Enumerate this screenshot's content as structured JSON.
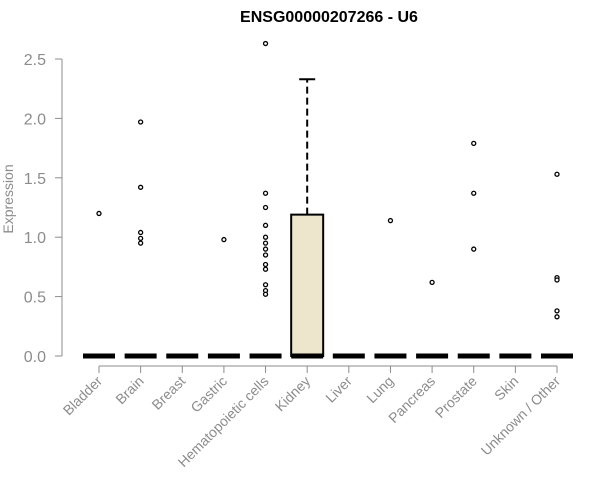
{
  "chart_data": {
    "type": "box",
    "title": "ENSG00000207266 - U6",
    "xlabel": "",
    "ylabel": "Expression",
    "ylim": [
      0,
      2.6
    ],
    "yticks": [
      "0.0",
      "0.5",
      "1.0",
      "1.5",
      "2.0",
      "2.5"
    ],
    "ytick_values": [
      0,
      0.5,
      1.0,
      1.5,
      2.0,
      2.5
    ],
    "grid": false,
    "colors": {
      "box_fill": "#ede6cc",
      "line": "#000000",
      "axis": "#8c8c8c",
      "label": "#8c8c8c"
    },
    "categories": [
      "Bladder",
      "Brain",
      "Breast",
      "Gastric",
      "Hematopoietic cells",
      "Kidney",
      "Liver",
      "Lung",
      "Pancreas",
      "Prostate",
      "Skin",
      "Unknown / Other"
    ],
    "boxes": [
      {
        "category": "Bladder",
        "q1": 0,
        "median": 0,
        "q3": 0,
        "whisker_low": 0,
        "whisker_high": 0,
        "outliers": [
          1.2
        ]
      },
      {
        "category": "Brain",
        "q1": 0,
        "median": 0,
        "q3": 0,
        "whisker_low": 0,
        "whisker_high": 0,
        "outliers": [
          1.97,
          1.42,
          1.04,
          0.99,
          0.95
        ]
      },
      {
        "category": "Breast",
        "q1": 0,
        "median": 0,
        "q3": 0,
        "whisker_low": 0,
        "whisker_high": 0,
        "outliers": []
      },
      {
        "category": "Gastric",
        "q1": 0,
        "median": 0,
        "q3": 0,
        "whisker_low": 0,
        "whisker_high": 0,
        "outliers": [
          0.98
        ]
      },
      {
        "category": "Hematopoietic cells",
        "q1": 0,
        "median": 0,
        "q3": 0,
        "whisker_low": 0,
        "whisker_high": 0,
        "outliers": [
          2.63,
          1.37,
          1.25,
          1.1,
          1.0,
          0.95,
          0.9,
          0.85,
          0.77,
          0.73,
          0.6,
          0.55,
          0.52
        ]
      },
      {
        "category": "Kidney",
        "q1": 0,
        "median": 0,
        "q3": 1.19,
        "whisker_low": 0,
        "whisker_high": 2.33,
        "outliers": []
      },
      {
        "category": "Liver",
        "q1": 0,
        "median": 0,
        "q3": 0,
        "whisker_low": 0,
        "whisker_high": 0,
        "outliers": []
      },
      {
        "category": "Lung",
        "q1": 0,
        "median": 0,
        "q3": 0,
        "whisker_low": 0,
        "whisker_high": 0,
        "outliers": [
          1.14
        ]
      },
      {
        "category": "Pancreas",
        "q1": 0,
        "median": 0,
        "q3": 0,
        "whisker_low": 0,
        "whisker_high": 0,
        "outliers": [
          0.62
        ]
      },
      {
        "category": "Prostate",
        "q1": 0,
        "median": 0,
        "q3": 0,
        "whisker_low": 0,
        "whisker_high": 0,
        "outliers": [
          1.79,
          1.37,
          0.9
        ]
      },
      {
        "category": "Skin",
        "q1": 0,
        "median": 0,
        "q3": 0,
        "whisker_low": 0,
        "whisker_high": 0,
        "outliers": []
      },
      {
        "category": "Unknown / Other",
        "q1": 0,
        "median": 0,
        "q3": 0,
        "whisker_low": 0,
        "whisker_high": 0,
        "outliers": [
          1.53,
          0.66,
          0.64,
          0.38,
          0.33
        ]
      }
    ]
  }
}
